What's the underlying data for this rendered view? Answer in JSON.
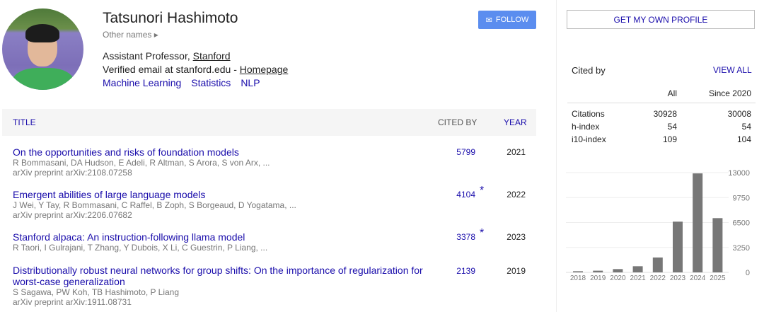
{
  "profile": {
    "name": "Tatsunori Hashimoto",
    "other_names": "Other names",
    "title": "Assistant Professor, ",
    "affiliation": "Stanford",
    "email": "Verified email at stanford.edu - ",
    "homepage": "Homepage",
    "interests": [
      "Machine Learning",
      "Statistics",
      "NLP"
    ],
    "follow_label": "FOLLOW"
  },
  "table": {
    "headers": {
      "title": "TITLE",
      "cited_by": "CITED BY",
      "year": "YEAR"
    },
    "rows": [
      {
        "title": "On the opportunities and risks of foundation models",
        "authors": "R Bommasani, DA Hudson, E Adeli, R Altman, S Arora, S von Arx, ...",
        "venue": "arXiv preprint arXiv:2108.07258",
        "cited": "5799",
        "star": "",
        "year": "2021"
      },
      {
        "title": "Emergent abilities of large language models",
        "authors": "J Wei, Y Tay, R Bommasani, C Raffel, B Zoph, S Borgeaud, D Yogatama, ...",
        "venue": "arXiv preprint arXiv:2206.07682",
        "cited": "4104",
        "star": "*",
        "year": "2022"
      },
      {
        "title": "Stanford alpaca: An instruction-following llama model",
        "authors": "R Taori, I Gulrajani, T Zhang, Y Dubois, X Li, C Guestrin, P Liang, ...",
        "venue": "",
        "cited": "3378",
        "star": "*",
        "year": "2023"
      },
      {
        "title": "Distributionally robust neural networks for group shifts: On the importance of regularization for worst-case generalization",
        "authors": "S Sagawa, PW Koh, TB Hashimoto, P Liang",
        "venue": "arXiv preprint arXiv:1911.08731",
        "cited": "2139",
        "star": "",
        "year": "2019"
      }
    ]
  },
  "sidebar": {
    "get_profile": "GET MY OWN PROFILE",
    "cited_by": "Cited by",
    "view_all": "VIEW ALL",
    "stats": {
      "headers": [
        "",
        "All",
        "Since 2020"
      ],
      "rows": [
        [
          "Citations",
          "30928",
          "30008"
        ],
        [
          "h-index",
          "54",
          "54"
        ],
        [
          "i10-index",
          "109",
          "104"
        ]
      ]
    }
  },
  "chart_data": {
    "type": "bar",
    "categories": [
      "2018",
      "2019",
      "2020",
      "2021",
      "2022",
      "2023",
      "2024",
      "2025"
    ],
    "values": [
      150,
      220,
      430,
      800,
      1940,
      6610,
      12900,
      7070
    ],
    "yticks": [
      0,
      3250,
      6500,
      9750,
      13000
    ],
    "ylim": [
      0,
      13000
    ],
    "color": "#777777",
    "grid": true,
    "y_axis_side": "right"
  }
}
